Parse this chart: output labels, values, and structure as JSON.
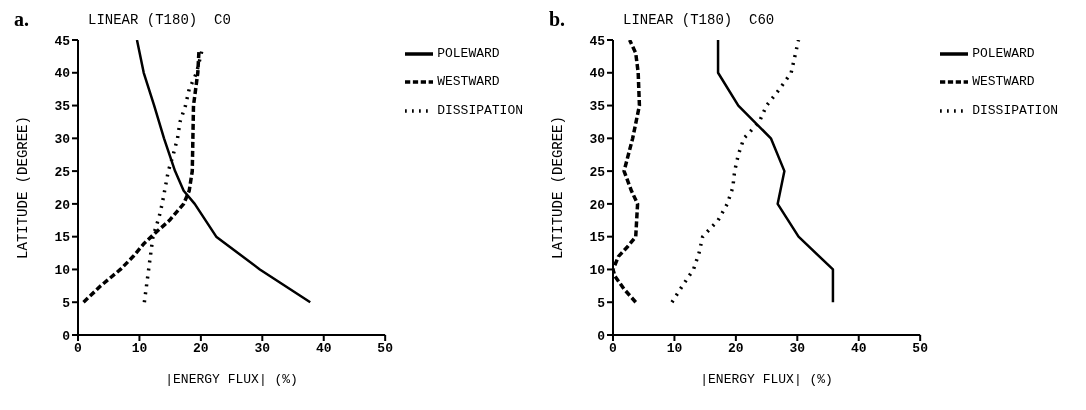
{
  "chart_data": [
    {
      "type": "line",
      "title": "LINEAR (T180)  C0",
      "annotations": [
        "a."
      ],
      "xlabel": "|ENERGY FLUX| (%)",
      "ylabel": "LATITUDE (DEGREE)",
      "xlim": [
        0,
        50
      ],
      "xticks": [
        0,
        10,
        20,
        30,
        40,
        50
      ],
      "ylim": [
        0,
        45
      ],
      "yticks": [
        0,
        5,
        10,
        15,
        20,
        25,
        30,
        35,
        40,
        45
      ],
      "grid": false,
      "legend": "right",
      "marker": "none",
      "series": [
        {
          "name": "POLEWARD",
          "color": "#000000",
          "line_style": "solid",
          "x": [
            37.8,
            29.6,
            22.5,
            19,
            17.2,
            15.8,
            14,
            12.4,
            10.7,
            9.6
          ],
          "values": [
            5,
            10,
            15,
            20,
            22,
            25,
            30,
            35,
            40,
            45
          ]
        },
        {
          "name": "WESTWARD",
          "color": "#000000",
          "line_style": "dashed",
          "x": [
            0.9,
            3.7,
            6.9,
            9,
            10.8,
            12.5,
            14.9,
            17.2,
            18.1,
            18.6,
            18.7,
            18.8,
            19.5,
            19.7
          ],
          "values": [
            5,
            7.5,
            10,
            12,
            14,
            15.5,
            17.5,
            20,
            22,
            25,
            30,
            35,
            40,
            43.5
          ]
        },
        {
          "name": "DISSIPATION",
          "color": "#000000",
          "line_style": "dotted",
          "x": [
            10.8,
            11.5,
            12.2,
            13.2,
            13.7,
            14.2,
            14.7,
            15.5,
            16.2,
            16.6,
            17.5,
            18.1,
            19.3,
            20.2
          ],
          "values": [
            5,
            10,
            15,
            18,
            20,
            22.5,
            25,
            27.5,
            30,
            32.5,
            35,
            37.5,
            40,
            43.5
          ]
        }
      ]
    },
    {
      "type": "line",
      "title": "LINEAR (T180)  C60",
      "annotations": [
        "b."
      ],
      "xlabel": "|ENERGY FLUX| (%)",
      "ylabel": "LATITUDE (DEGREE)",
      "xlim": [
        0,
        50
      ],
      "xticks": [
        0,
        10,
        20,
        30,
        40,
        50
      ],
      "ylim": [
        0,
        45
      ],
      "yticks": [
        0,
        5,
        10,
        15,
        20,
        25,
        30,
        35,
        40,
        45
      ],
      "grid": false,
      "legend": "right",
      "marker": "none",
      "series": [
        {
          "name": "POLEWARD",
          "color": "#000000",
          "line_style": "solid",
          "x": [
            35.8,
            35.8,
            30.2,
            26.8,
            27.9,
            25.7,
            20.4,
            17.1,
            17.1
          ],
          "values": [
            5,
            10,
            15,
            20,
            25,
            30,
            35,
            40,
            45
          ]
        },
        {
          "name": "WESTWARD",
          "color": "#000000",
          "line_style": "dashed",
          "x": [
            3.7,
            1.8,
            0.3,
            0,
            0.9,
            2.4,
            3.7,
            4,
            3,
            1.8,
            3.2,
            4.3,
            4.1,
            3.7,
            2.7
          ],
          "values": [
            5,
            7,
            9,
            10,
            12,
            13.5,
            15,
            20,
            22,
            25,
            30,
            35,
            40,
            43,
            45
          ]
        },
        {
          "name": "DISSIPATION",
          "color": "#000000",
          "line_style": "dotted",
          "x": [
            9.6,
            11.3,
            13.1,
            14,
            14.6,
            17.1,
            18.6,
            19.5,
            19.8,
            20.4,
            21.3,
            23.8,
            25,
            27.1,
            29,
            30.2
          ],
          "values": [
            5,
            7.5,
            10,
            12.5,
            15,
            17.5,
            20,
            22.5,
            25,
            27.5,
            30,
            32.5,
            35,
            37.5,
            40,
            45
          ]
        }
      ]
    }
  ]
}
